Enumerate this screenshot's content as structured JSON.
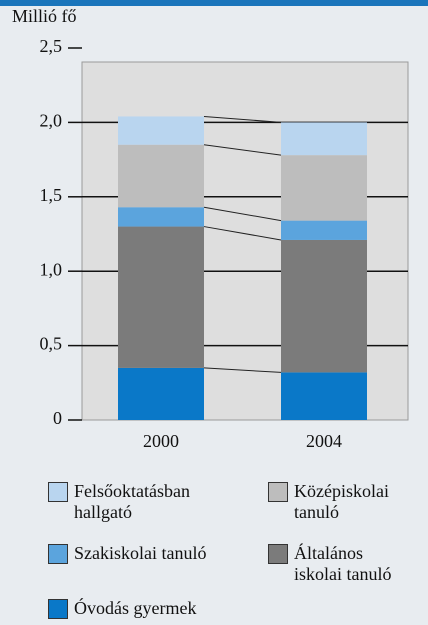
{
  "chart_data": {
    "type": "stacked_bar",
    "y_label": "Millió fő",
    "categories": [
      "2000",
      "2004"
    ],
    "series": [
      {
        "name": "Felsőoktatásban hallgató",
        "color": "#b9d5ef",
        "values": [
          0.19,
          0.22
        ]
      },
      {
        "name": "Középiskolai tanuló",
        "color": "#bdbdbd",
        "values": [
          0.42,
          0.44
        ]
      },
      {
        "name": "Szakiskolai tanuló",
        "color": "#5ba4dd",
        "values": [
          0.13,
          0.13
        ]
      },
      {
        "name": "Általános iskolai tanuló",
        "color": "#7b7b7b",
        "values": [
          0.95,
          0.89
        ]
      },
      {
        "name": "Óvodás gyermek",
        "color": "#0a78c8",
        "values": [
          0.35,
          0.32
        ]
      }
    ],
    "ylim": [
      0,
      2.5
    ],
    "yticks": [
      0,
      {
        "value": 0.5,
        "label": "0,5"
      },
      {
        "value": 1,
        "label": "1,0"
      },
      {
        "value": 1.5,
        "label": "1,5"
      },
      {
        "value": 2,
        "label": "2,0"
      },
      {
        "value": 2.5,
        "label": "2,5"
      }
    ],
    "grid": true
  }
}
